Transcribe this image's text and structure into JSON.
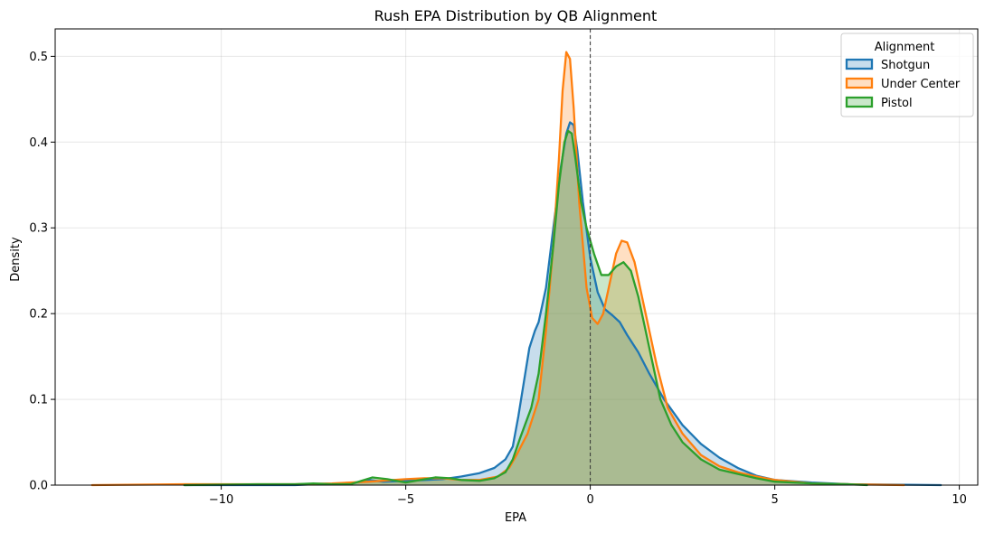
{
  "chart_data": {
    "type": "area",
    "title": "Rush EPA Distribution by QB Alignment",
    "xlabel": "EPA",
    "ylabel": "Density",
    "xlim": [
      -14.5,
      10.5
    ],
    "ylim": [
      0,
      0.532
    ],
    "xticks": [
      -10,
      -5,
      0,
      5,
      10
    ],
    "xtick_labels": [
      "−10",
      "−5",
      "0",
      "5",
      "10"
    ],
    "yticks": [
      0.0,
      0.1,
      0.2,
      0.3,
      0.4,
      0.5
    ],
    "ytick_labels": [
      "0.0",
      "0.1",
      "0.2",
      "0.3",
      "0.4",
      "0.5"
    ],
    "grid": true,
    "reference_line": {
      "x": 0,
      "style": "dashed",
      "color": "#333333"
    },
    "legend": {
      "title": "Alignment",
      "position": "top-right"
    },
    "series": [
      {
        "name": "Shotgun",
        "color": "#1f77b4",
        "points": [
          [
            -11.0,
            0.0
          ],
          [
            -8.0,
            0.0
          ],
          [
            -7.5,
            0.001
          ],
          [
            -6.5,
            0.002
          ],
          [
            -6.0,
            0.006
          ],
          [
            -5.6,
            0.004
          ],
          [
            -5.0,
            0.005
          ],
          [
            -4.5,
            0.006
          ],
          [
            -4.0,
            0.007
          ],
          [
            -3.5,
            0.01
          ],
          [
            -3.0,
            0.014
          ],
          [
            -2.6,
            0.02
          ],
          [
            -2.3,
            0.03
          ],
          [
            -2.1,
            0.045
          ],
          [
            -1.95,
            0.08
          ],
          [
            -1.8,
            0.12
          ],
          [
            -1.65,
            0.16
          ],
          [
            -1.5,
            0.18
          ],
          [
            -1.4,
            0.19
          ],
          [
            -1.2,
            0.23
          ],
          [
            -1.0,
            0.3
          ],
          [
            -0.8,
            0.37
          ],
          [
            -0.65,
            0.41
          ],
          [
            -0.55,
            0.423
          ],
          [
            -0.45,
            0.42
          ],
          [
            -0.35,
            0.39
          ],
          [
            -0.2,
            0.33
          ],
          [
            0.0,
            0.265
          ],
          [
            0.2,
            0.225
          ],
          [
            0.4,
            0.205
          ],
          [
            0.6,
            0.198
          ],
          [
            0.8,
            0.19
          ],
          [
            1.0,
            0.175
          ],
          [
            1.3,
            0.155
          ],
          [
            1.6,
            0.13
          ],
          [
            2.0,
            0.1
          ],
          [
            2.5,
            0.07
          ],
          [
            3.0,
            0.048
          ],
          [
            3.5,
            0.032
          ],
          [
            4.0,
            0.02
          ],
          [
            4.5,
            0.011
          ],
          [
            5.0,
            0.006
          ],
          [
            6.0,
            0.003
          ],
          [
            7.0,
            0.001
          ],
          [
            9.5,
            0.0
          ]
        ]
      },
      {
        "name": "Under Center",
        "color": "#ff7f0e",
        "points": [
          [
            -13.5,
            0.0
          ],
          [
            -11.0,
            0.001
          ],
          [
            -8.0,
            0.001
          ],
          [
            -7.0,
            0.002
          ],
          [
            -6.0,
            0.004
          ],
          [
            -5.0,
            0.007
          ],
          [
            -4.5,
            0.008
          ],
          [
            -4.0,
            0.008
          ],
          [
            -3.5,
            0.006
          ],
          [
            -3.0,
            0.006
          ],
          [
            -2.5,
            0.01
          ],
          [
            -2.2,
            0.02
          ],
          [
            -2.0,
            0.035
          ],
          [
            -1.7,
            0.06
          ],
          [
            -1.4,
            0.1
          ],
          [
            -1.2,
            0.18
          ],
          [
            -1.0,
            0.28
          ],
          [
            -0.85,
            0.38
          ],
          [
            -0.75,
            0.46
          ],
          [
            -0.65,
            0.505
          ],
          [
            -0.55,
            0.497
          ],
          [
            -0.45,
            0.44
          ],
          [
            -0.3,
            0.33
          ],
          [
            -0.1,
            0.23
          ],
          [
            0.05,
            0.195
          ],
          [
            0.2,
            0.188
          ],
          [
            0.35,
            0.2
          ],
          [
            0.5,
            0.23
          ],
          [
            0.7,
            0.27
          ],
          [
            0.85,
            0.285
          ],
          [
            1.0,
            0.283
          ],
          [
            1.2,
            0.26
          ],
          [
            1.5,
            0.2
          ],
          [
            1.8,
            0.14
          ],
          [
            2.1,
            0.09
          ],
          [
            2.5,
            0.06
          ],
          [
            3.0,
            0.035
          ],
          [
            3.5,
            0.022
          ],
          [
            4.0,
            0.015
          ],
          [
            4.5,
            0.01
          ],
          [
            5.0,
            0.006
          ],
          [
            6.0,
            0.002
          ],
          [
            7.0,
            0.001
          ],
          [
            8.5,
            0.0
          ]
        ]
      },
      {
        "name": "Pistol",
        "color": "#2ca02c",
        "points": [
          [
            -11.0,
            0.0
          ],
          [
            -9.0,
            0.001
          ],
          [
            -8.0,
            0.001
          ],
          [
            -7.5,
            0.002
          ],
          [
            -7.0,
            0.001
          ],
          [
            -6.5,
            0.001
          ],
          [
            -6.2,
            0.005
          ],
          [
            -5.9,
            0.009
          ],
          [
            -5.5,
            0.007
          ],
          [
            -5.0,
            0.003
          ],
          [
            -4.6,
            0.006
          ],
          [
            -4.2,
            0.009
          ],
          [
            -3.8,
            0.008
          ],
          [
            -3.5,
            0.006
          ],
          [
            -3.0,
            0.005
          ],
          [
            -2.6,
            0.008
          ],
          [
            -2.3,
            0.015
          ],
          [
            -2.1,
            0.03
          ],
          [
            -1.9,
            0.055
          ],
          [
            -1.6,
            0.09
          ],
          [
            -1.4,
            0.13
          ],
          [
            -1.2,
            0.2
          ],
          [
            -1.0,
            0.28
          ],
          [
            -0.85,
            0.35
          ],
          [
            -0.7,
            0.4
          ],
          [
            -0.6,
            0.413
          ],
          [
            -0.5,
            0.41
          ],
          [
            -0.4,
            0.38
          ],
          [
            -0.25,
            0.33
          ],
          [
            -0.1,
            0.3
          ],
          [
            0.1,
            0.27
          ],
          [
            0.3,
            0.245
          ],
          [
            0.5,
            0.245
          ],
          [
            0.7,
            0.255
          ],
          [
            0.9,
            0.26
          ],
          [
            1.1,
            0.25
          ],
          [
            1.3,
            0.22
          ],
          [
            1.6,
            0.16
          ],
          [
            1.9,
            0.1
          ],
          [
            2.2,
            0.07
          ],
          [
            2.5,
            0.05
          ],
          [
            3.0,
            0.03
          ],
          [
            3.5,
            0.018
          ],
          [
            4.0,
            0.013
          ],
          [
            4.5,
            0.008
          ],
          [
            5.0,
            0.004
          ],
          [
            6.0,
            0.002
          ],
          [
            7.0,
            0.001
          ],
          [
            7.5,
            0.0
          ]
        ]
      }
    ]
  }
}
